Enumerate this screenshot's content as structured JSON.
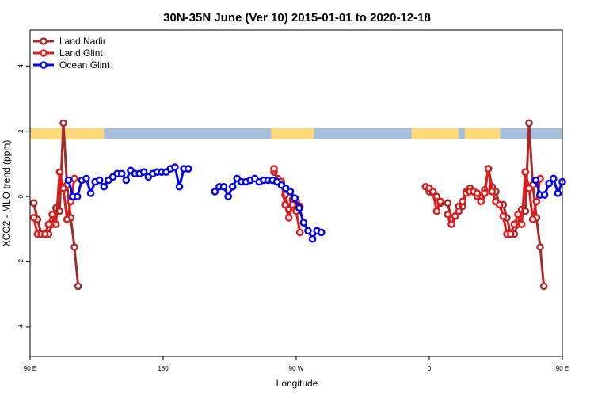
{
  "chart_data": {
    "type": "line",
    "title": "30N-35N June (Ver 10)   2015-01-01 to 2020-12-18",
    "xlabel": "Longitude",
    "ylabel": "XCO2 - MLO trend (ppm)",
    "xlim": [
      90,
      450
    ],
    "ylim": [
      -4.9,
      5.1
    ],
    "y_ticks": [
      -4,
      -2,
      0,
      2,
      4
    ],
    "x_ticks": [
      {
        "value": 90,
        "label": "90 E"
      },
      {
        "value": 180,
        "label": "180"
      },
      {
        "value": 270,
        "label": "90 W"
      },
      {
        "value": 360,
        "label": "0"
      },
      {
        "value": 450,
        "label": "90 E"
      },
      {
        "value": 540,
        "label": "180"
      }
    ],
    "legend_position": "top-left",
    "grid": false,
    "land_mask_band": {
      "y_range": [
        1.75,
        2.1
      ],
      "ocean_color": "#a6bddb",
      "land_color": "#fdd97a",
      "land_intervals": [
        [
          90,
          140
        ],
        [
          253,
          282
        ],
        [
          348,
          380
        ],
        [
          384,
          408
        ],
        [
          478,
          490
        ]
      ]
    },
    "series": [
      {
        "name": "Land Nadir",
        "color": "#a52a2a",
        "x": [
          92.5,
          95,
          97.5,
          100,
          102.5,
          105,
          107.5,
          110,
          112.5,
          115,
          117.5,
          120,
          122.5,
          125,
          255,
          257.5,
          260,
          262.5,
          265,
          267.5,
          270,
          272.5,
          275,
          277.5,
          357.5,
          360,
          362.5,
          365,
          367.5,
          370,
          372.5,
          375,
          377.5,
          380,
          382.5,
          385,
          387.5,
          390,
          392.5,
          395,
          397.5,
          400,
          402.5,
          405,
          407.5,
          410,
          412.5,
          415,
          417.5,
          420,
          422.5,
          425,
          427.5,
          430,
          432.5,
          435,
          437.5,
          440,
          442.5,
          445,
          447.5
        ],
        "y": [
          -0.2,
          -0.7,
          -1.15,
          -1.15,
          -1.15,
          -0.85,
          -0.35,
          -0.45,
          2.25,
          0.35,
          -0.65,
          -1.55,
          -2.75,
          null,
          0.75,
          0.55,
          0.45,
          0.05,
          -0.4,
          -0.1,
          -0.15,
          -0.3,
          null,
          null,
          0.3,
          0.15,
          0.1,
          0.0,
          -0.2,
          null,
          -0.2,
          -0.7,
          -0.6,
          -0.3,
          -0.3,
          0.15,
          0.25,
          0.15,
          0.0,
          -0.05,
          0.2,
          0.85,
          0.3,
          0.15,
          -0.25,
          -0.25,
          -0.65,
          -1.15,
          -1.15,
          -0.85,
          -0.4,
          -0.45,
          2.25,
          0.35,
          -0.65,
          -1.55,
          -2.75,
          null,
          null,
          null,
          null
        ]
      },
      {
        "name": "Land Glint",
        "color": "#e31a1c",
        "x": [
          92.5,
          95,
          97.5,
          100,
          102.5,
          105,
          107.5,
          110,
          112.5,
          115,
          117.5,
          120,
          122.5,
          255,
          257.5,
          260,
          262.5,
          265,
          267.5,
          270,
          272.5,
          275,
          357.5,
          360,
          362.5,
          365,
          367.5,
          370,
          372.5,
          375,
          377.5,
          380,
          382.5,
          385,
          387.5,
          390,
          392.5,
          395,
          397.5,
          400,
          402.5,
          405,
          407.5,
          410,
          412.5,
          415,
          417.5,
          420,
          422.5,
          425,
          427.5,
          430,
          432.5,
          435,
          437.5
        ],
        "y": [
          -0.65,
          -1.15,
          -1.15,
          -1.15,
          -0.85,
          -0.55,
          -0.85,
          0.75,
          0.25,
          -0.7,
          -0.15,
          0.55,
          null,
          0.85,
          0.45,
          0.45,
          -0.25,
          -0.65,
          -0.25,
          -0.45,
          -1.1,
          null,
          0.3,
          0.25,
          0.15,
          -0.45,
          -0.15,
          null,
          -0.55,
          -0.85,
          -0.6,
          -0.45,
          -0.15,
          0.1,
          0.15,
          0.15,
          0.1,
          -0.15,
          0.1,
          0.85,
          0.15,
          -0.15,
          -0.25,
          -0.6,
          -1.15,
          -1.15,
          -0.85,
          -0.55,
          -0.85,
          0.75,
          0.25,
          -0.7,
          -0.15,
          0.55,
          null
        ]
      },
      {
        "name": "Ocean Glint",
        "color": "#0000ee",
        "x": [
          113,
          116,
          119,
          122,
          125,
          128,
          131,
          134,
          137,
          140,
          143,
          146,
          149,
          152,
          155,
          158,
          161,
          164,
          167,
          170,
          173,
          176,
          179,
          182,
          185,
          188,
          191,
          194,
          197,
          200,
          203,
          206,
          209,
          212,
          215,
          218,
          221,
          224,
          227,
          230,
          233,
          236,
          239,
          242,
          245,
          248,
          251,
          254,
          257,
          260,
          263,
          266,
          269,
          272,
          275,
          278,
          281,
          284,
          287,
          290,
          293,
          296,
          299,
          302,
          305,
          308,
          311,
          314,
          317,
          320,
          323,
          326,
          329,
          332,
          335,
          338,
          341,
          344,
          347,
          350,
          353,
          356,
          359,
          362,
          365,
          368,
          371,
          374,
          377,
          380,
          383,
          386
        ],
        "y": [
          null,
          0.5,
          0.0,
          0.0,
          0.5,
          0.55,
          0.1,
          0.45,
          0.5,
          0.3,
          0.5,
          0.6,
          0.7,
          0.7,
          0.5,
          0.8,
          0.7,
          0.7,
          0.75,
          0.6,
          0.7,
          0.75,
          0.75,
          0.75,
          0.85,
          0.9,
          0.3,
          0.85,
          0.85,
          null,
          null,
          null,
          null,
          null,
          0.15,
          0.3,
          0.3,
          0.0,
          0.3,
          0.55,
          0.45,
          0.45,
          0.5,
          0.55,
          0.45,
          0.5,
          0.5,
          0.5,
          0.45,
          0.35,
          0.25,
          0.15,
          -0.05,
          -0.35,
          -0.8,
          -1.05,
          -1.3,
          -1.05,
          -1.1,
          null,
          null,
          null,
          null,
          null,
          null,
          null,
          null,
          null,
          null,
          null,
          null,
          null,
          null,
          null,
          null,
          null,
          null,
          null,
          null,
          null,
          null,
          null,
          null,
          null,
          null,
          null,
          null,
          null,
          null,
          null,
          null,
          null
        ],
        "x2": [
          432,
          435,
          438,
          441,
          444,
          447,
          450
        ],
        "y2": [
          0.5,
          0.05,
          0.05,
          0.4,
          0.55,
          0.1,
          0.45
        ]
      }
    ]
  }
}
